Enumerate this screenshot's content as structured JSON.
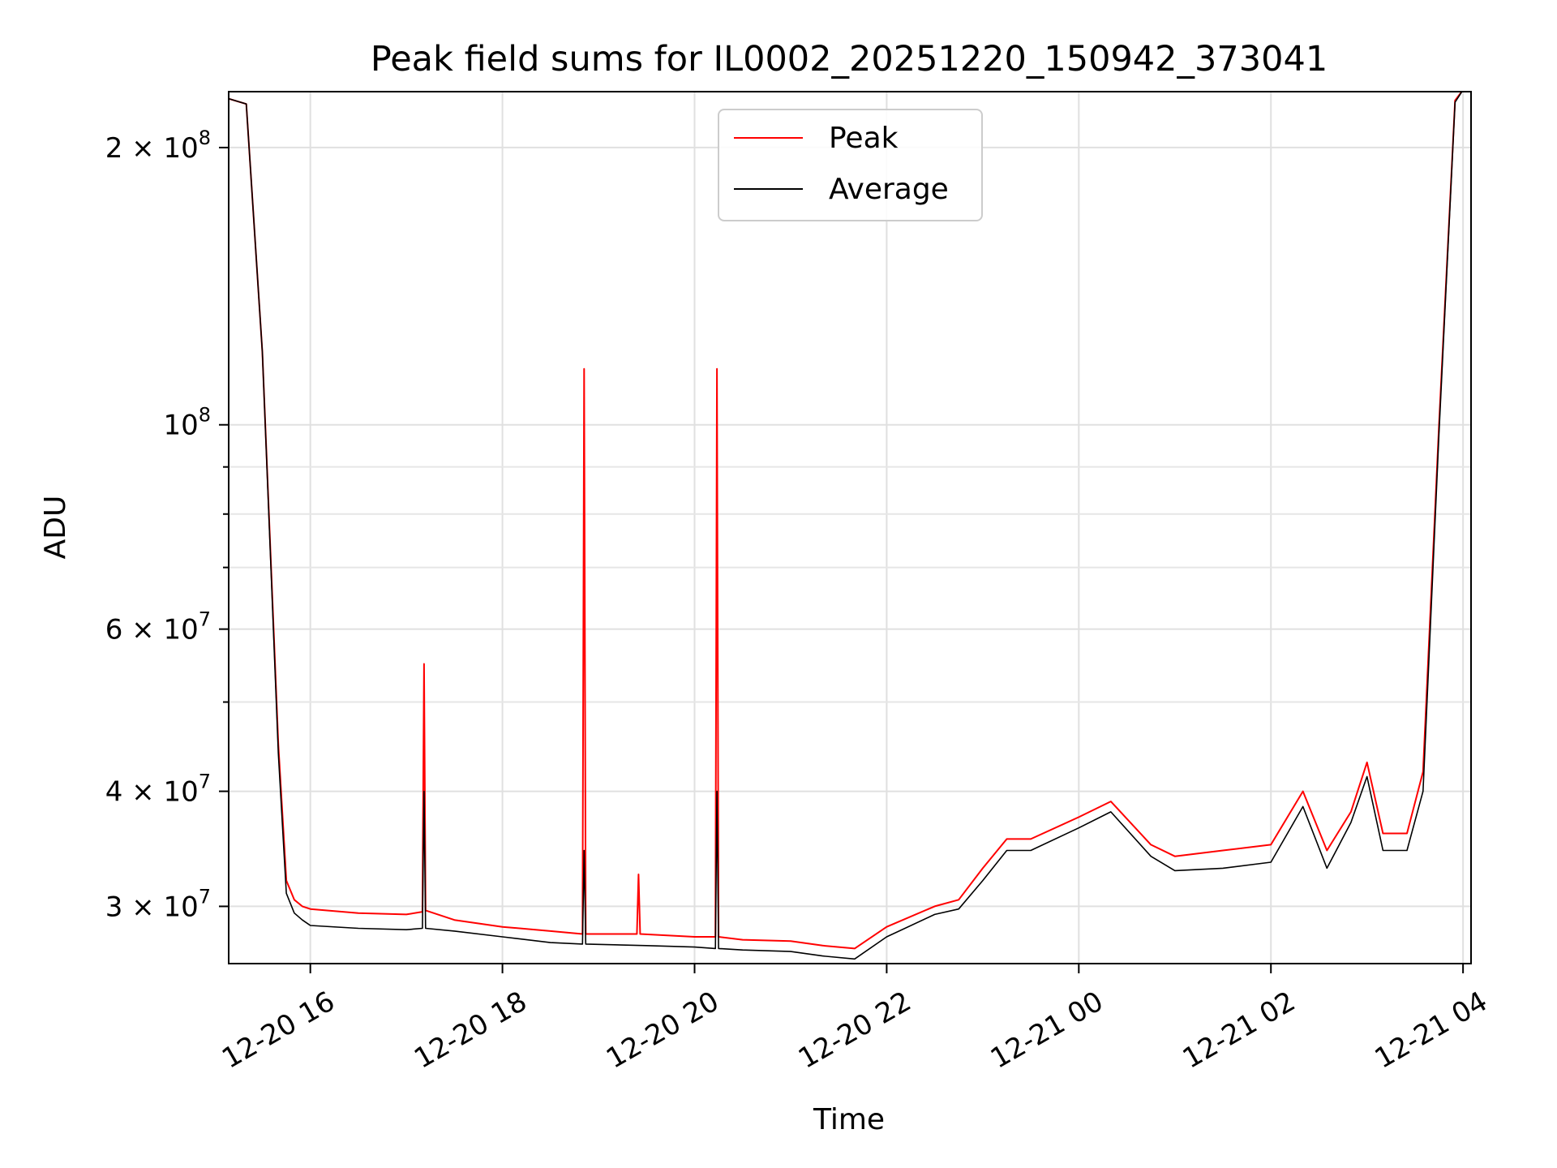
{
  "chart_data": {
    "type": "line",
    "title": "Peak field sums for IL0002_20251220_150942_373041",
    "xlabel": "Time",
    "ylabel": "ADU",
    "yscale": "log",
    "grid": true,
    "legend_position": "top-center",
    "xlim": [
      "2025-12-20T15:09",
      "2025-12-21T04:05"
    ],
    "ylim": [
      26000000,
      230000000
    ],
    "x_ticks": [
      {
        "value": "2025-12-20T16:00",
        "label": "12-20 16"
      },
      {
        "value": "2025-12-20T18:00",
        "label": "12-20 18"
      },
      {
        "value": "2025-12-20T20:00",
        "label": "12-20 20"
      },
      {
        "value": "2025-12-20T22:00",
        "label": "12-20 22"
      },
      {
        "value": "2025-12-21T00:00",
        "label": "12-21 00"
      },
      {
        "value": "2025-12-21T02:00",
        "label": "12-21 02"
      },
      {
        "value": "2025-12-21T04:00",
        "label": "12-21 04"
      }
    ],
    "y_ticks": [
      {
        "value": 30000000,
        "mantissa": "3",
        "exponent": "7"
      },
      {
        "value": 40000000,
        "mantissa": "4",
        "exponent": "7"
      },
      {
        "value": 60000000,
        "mantissa": "6",
        "exponent": "7"
      },
      {
        "value": 100000000,
        "mantissa": "",
        "exponent": "8"
      },
      {
        "value": 200000000,
        "mantissa": "2",
        "exponent": "8"
      }
    ],
    "y_minor_ticks": [
      50000000,
      70000000,
      80000000,
      90000000
    ],
    "series": [
      {
        "name": "Peak",
        "color": "#ff0000",
        "x": [
          "2025-12-20T15:09",
          "2025-12-20T15:20",
          "2025-12-20T15:30",
          "2025-12-20T15:40",
          "2025-12-20T15:45",
          "2025-12-20T15:50",
          "2025-12-20T15:55",
          "2025-12-20T16:00",
          "2025-12-20T16:30",
          "2025-12-20T17:00",
          "2025-12-20T17:10",
          "2025-12-20T17:11",
          "2025-12-20T17:12",
          "2025-12-20T17:30",
          "2025-12-20T18:00",
          "2025-12-20T18:30",
          "2025-12-20T18:50",
          "2025-12-20T18:51",
          "2025-12-20T18:52",
          "2025-12-20T19:24",
          "2025-12-20T19:25",
          "2025-12-20T19:26",
          "2025-12-20T20:00",
          "2025-12-20T20:13",
          "2025-12-20T20:14",
          "2025-12-20T20:15",
          "2025-12-20T20:30",
          "2025-12-20T21:00",
          "2025-12-20T21:20",
          "2025-12-20T21:40",
          "2025-12-20T22:00",
          "2025-12-20T22:30",
          "2025-12-20T22:45",
          "2025-12-20T23:00",
          "2025-12-20T23:15",
          "2025-12-20T23:30",
          "2025-12-21T00:00",
          "2025-12-21T00:20",
          "2025-12-21T00:45",
          "2025-12-21T01:00",
          "2025-12-21T01:30",
          "2025-12-21T02:00",
          "2025-12-21T02:20",
          "2025-12-21T02:35",
          "2025-12-21T02:50",
          "2025-12-21T03:00",
          "2025-12-21T03:10",
          "2025-12-21T03:25",
          "2025-12-21T03:35",
          "2025-12-21T03:45",
          "2025-12-21T03:55",
          "2025-12-21T04:00"
        ],
        "y": [
          226000000,
          223000000,
          120000000,
          45000000,
          32000000,
          30500000,
          30000000,
          29800000,
          29500000,
          29400000,
          29600000,
          55000000,
          29700000,
          29000000,
          28500000,
          28200000,
          28000000,
          115000000,
          28000000,
          28000000,
          32500000,
          28000000,
          27800000,
          27800000,
          115000000,
          27800000,
          27600000,
          27500000,
          27200000,
          27000000,
          28500000,
          30000000,
          30500000,
          33000000,
          35500000,
          35500000,
          37500000,
          39000000,
          35000000,
          34000000,
          34500000,
          35000000,
          40000000,
          34500000,
          38000000,
          43000000,
          36000000,
          36000000,
          42000000,
          100000000,
          225000000,
          231000000
        ]
      },
      {
        "name": "Average",
        "color": "#000000",
        "x": [
          "2025-12-20T15:09",
          "2025-12-20T15:20",
          "2025-12-20T15:30",
          "2025-12-20T15:40",
          "2025-12-20T15:45",
          "2025-12-20T15:50",
          "2025-12-20T15:55",
          "2025-12-20T16:00",
          "2025-12-20T16:30",
          "2025-12-20T17:00",
          "2025-12-20T17:10",
          "2025-12-20T17:11",
          "2025-12-20T17:12",
          "2025-12-20T17:30",
          "2025-12-20T18:00",
          "2025-12-20T18:30",
          "2025-12-20T18:50",
          "2025-12-20T18:51",
          "2025-12-20T18:52",
          "2025-12-20T19:30",
          "2025-12-20T20:00",
          "2025-12-20T20:13",
          "2025-12-20T20:14",
          "2025-12-20T20:15",
          "2025-12-20T20:30",
          "2025-12-20T21:00",
          "2025-12-20T21:20",
          "2025-12-20T21:40",
          "2025-12-20T22:00",
          "2025-12-20T22:30",
          "2025-12-20T22:45",
          "2025-12-20T23:00",
          "2025-12-20T23:15",
          "2025-12-20T23:30",
          "2025-12-21T00:00",
          "2025-12-21T00:20",
          "2025-12-21T00:45",
          "2025-12-21T01:00",
          "2025-12-21T01:30",
          "2025-12-21T02:00",
          "2025-12-21T02:20",
          "2025-12-21T02:35",
          "2025-12-21T02:50",
          "2025-12-21T03:00",
          "2025-12-21T03:10",
          "2025-12-21T03:25",
          "2025-12-21T03:35",
          "2025-12-21T03:45",
          "2025-12-21T03:55",
          "2025-12-21T04:00"
        ],
        "y": [
          226000000,
          223000000,
          120000000,
          44000000,
          31000000,
          29500000,
          29000000,
          28600000,
          28400000,
          28300000,
          28400000,
          40000000,
          28400000,
          28200000,
          27800000,
          27400000,
          27300000,
          34500000,
          27300000,
          27200000,
          27100000,
          27000000,
          40000000,
          27000000,
          26900000,
          26800000,
          26500000,
          26300000,
          27800000,
          29400000,
          29800000,
          32000000,
          34500000,
          34500000,
          36500000,
          38000000,
          34000000,
          32800000,
          33000000,
          33500000,
          38500000,
          33000000,
          37000000,
          41500000,
          34500000,
          34500000,
          40000000,
          98000000,
          224000000,
          231000000
        ]
      }
    ]
  }
}
